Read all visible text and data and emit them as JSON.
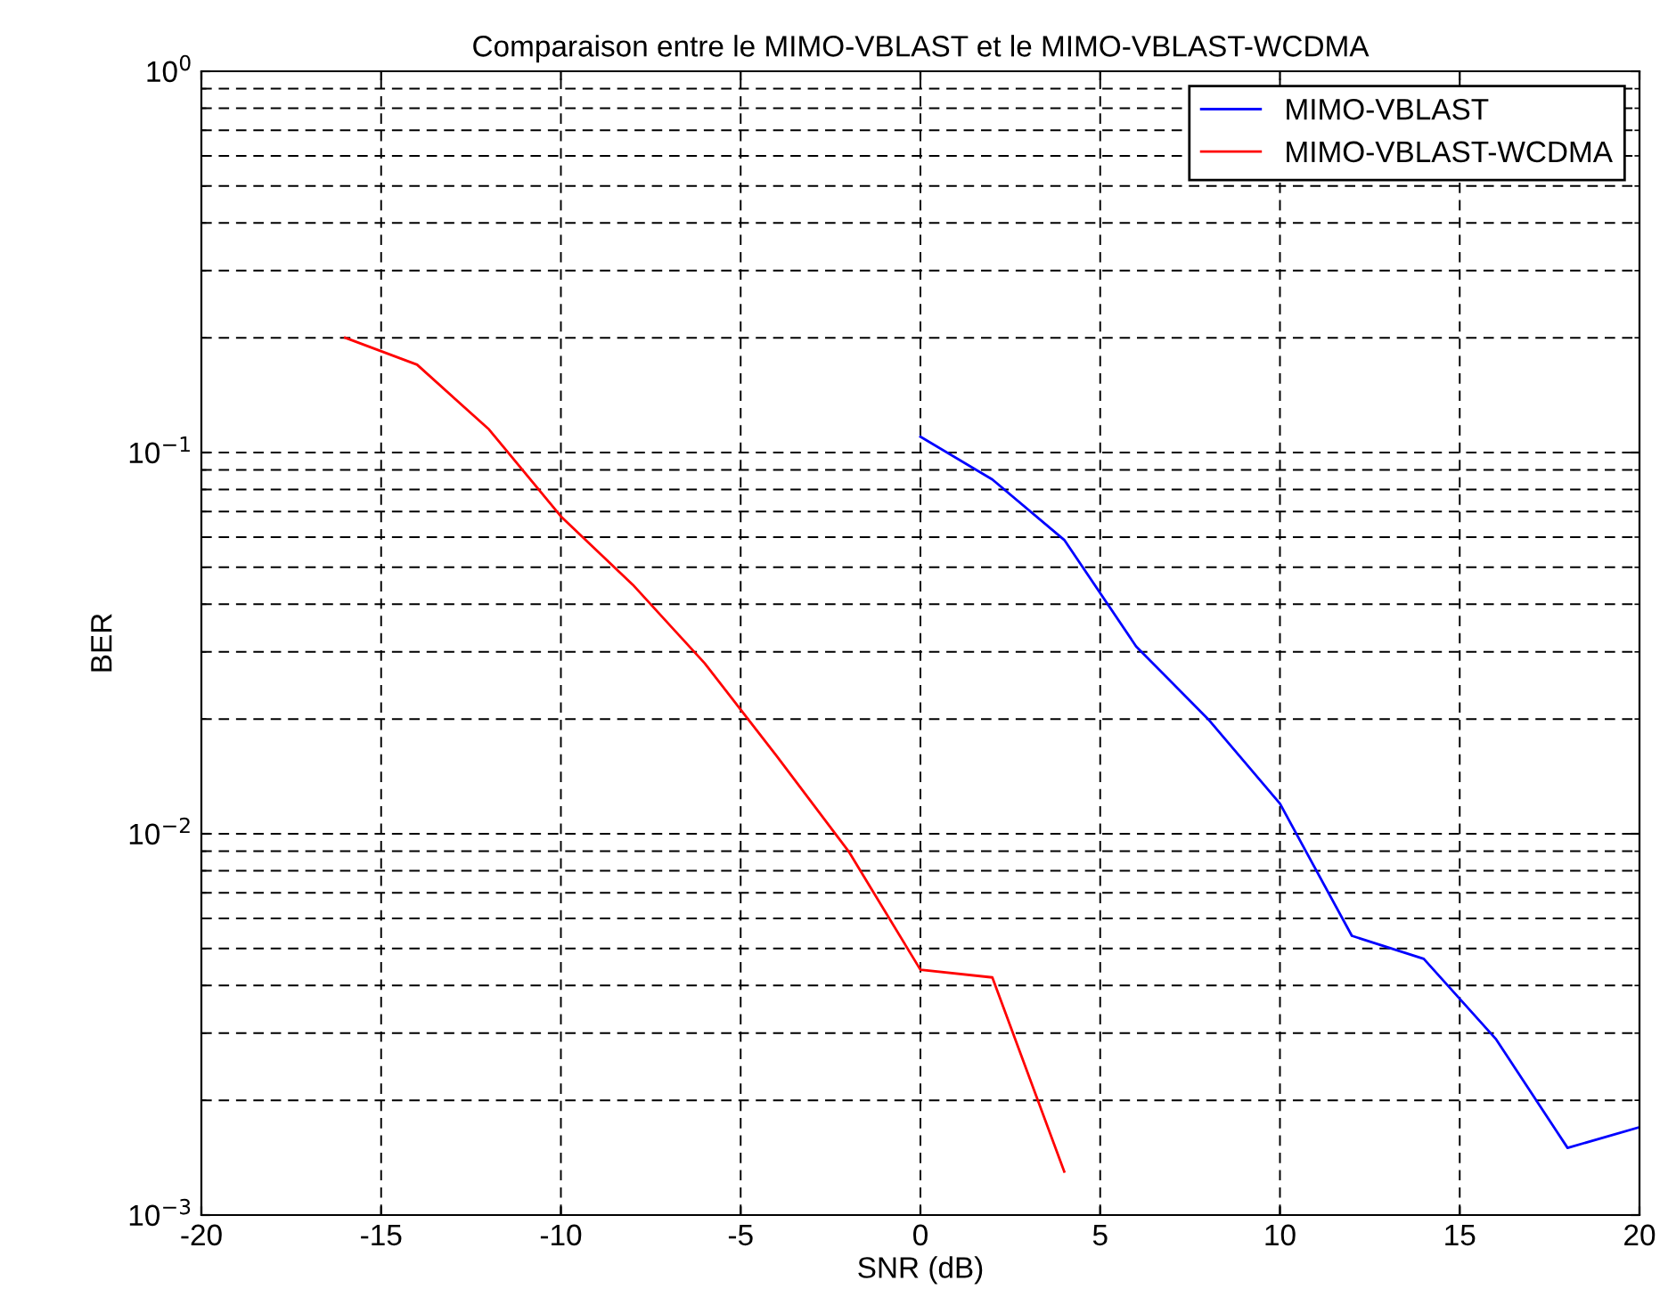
{
  "chart_data": {
    "type": "line",
    "title": "Comparaison entre le MIMO-VBLAST et le MIMO-VBLAST-WCDMA",
    "xlabel": "SNR (dB)",
    "ylabel": "BER",
    "log": "y",
    "grid": true,
    "legend": "top right",
    "line_style": "solid",
    "marker": "none",
    "xlim": [
      -20,
      20
    ],
    "xticks": [
      -20,
      -15,
      -10,
      -5,
      0,
      5,
      10,
      15,
      20
    ],
    "ylim": [
      0.001,
      1
    ],
    "yticks": [
      {
        "value": 0.001,
        "label": "10$^{−3}$"
      },
      {
        "value": 0.01,
        "label": "10$^{−2}$"
      },
      {
        "value": 0.1,
        "label": "10$^{−1}$"
      },
      {
        "value": 1,
        "label": "10$^{0}$"
      }
    ],
    "series": [
      {
        "name": "MIMO-VBLAST",
        "color": "#0000ff",
        "x": [
          0,
          2,
          4,
          6,
          8,
          10,
          12,
          14,
          16,
          18,
          20
        ],
        "values": [
          0.11,
          0.085,
          0.059,
          0.031,
          0.02,
          0.012,
          0.0054,
          0.0047,
          0.0029,
          0.0015,
          0.0017
        ]
      },
      {
        "name": "MIMO-VBLAST-WCDMA",
        "color": "#ff0000",
        "x": [
          -16,
          -14,
          -12,
          -10,
          -8,
          -6,
          -4,
          -2,
          0,
          2,
          4
        ],
        "values": [
          0.2,
          0.17,
          0.115,
          0.068,
          0.045,
          0.028,
          0.016,
          0.009,
          0.0044,
          0.0042,
          0.0013
        ]
      }
    ]
  }
}
